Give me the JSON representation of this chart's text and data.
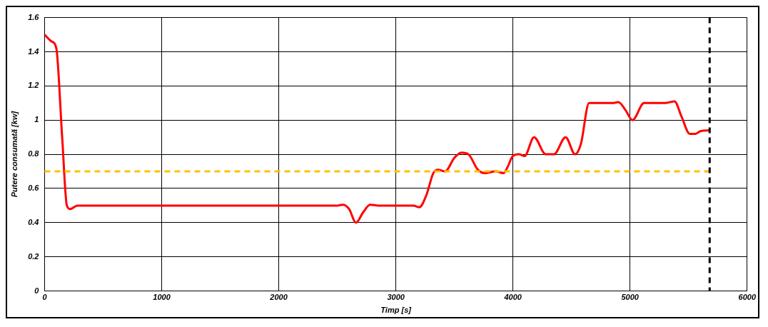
{
  "chart_data": {
    "type": "line",
    "xlabel": "Timp [s]",
    "ylabel": "Putere consumată [kw]",
    "x": [
      0,
      60,
      100,
      150,
      190,
      220,
      280,
      2500,
      2550,
      2600,
      2660,
      2720,
      2780,
      2850,
      3150,
      3200,
      3260,
      3320,
      3360,
      3420,
      3500,
      3560,
      3620,
      3700,
      3760,
      3850,
      3920,
      3950,
      4000,
      4050,
      4100,
      4180,
      4280,
      4350,
      4450,
      4530,
      4580,
      4650,
      4700,
      4850,
      4900,
      4960,
      5020,
      5120,
      5200,
      5300,
      5380,
      5440,
      5510,
      5560,
      5600,
      5680
    ],
    "series": [
      {
        "color": "#ff0000",
        "values": [
          1.5,
          1.46,
          1.42,
          0.9,
          0.5,
          0.48,
          0.5,
          0.5,
          0.505,
          0.48,
          0.4,
          0.46,
          0.505,
          0.5,
          0.5,
          0.49,
          0.56,
          0.69,
          0.71,
          0.7,
          0.78,
          0.81,
          0.8,
          0.71,
          0.69,
          0.7,
          0.69,
          0.72,
          0.79,
          0.8,
          0.79,
          0.9,
          0.8,
          0.8,
          0.9,
          0.8,
          0.86,
          1.1,
          1.1,
          1.1,
          1.105,
          1.06,
          1.0,
          1.1,
          1.1,
          1.1,
          1.11,
          1.02,
          0.92,
          0.92,
          0.935,
          0.94
        ]
      }
    ],
    "xlim": [
      0,
      6000
    ],
    "xticks": [
      0,
      1000,
      2000,
      3000,
      4000,
      5000,
      6000
    ],
    "ylim": [
      0,
      1.6
    ],
    "yticks": [
      0,
      0.2,
      0.4,
      0.6,
      0.8,
      1,
      1.2,
      1.4,
      1.6
    ],
    "grid": true,
    "legend": false,
    "marker": "none",
    "line_style": "solid",
    "ref_lines": [
      {
        "axis": "y",
        "value": 0.7,
        "color": "#ffc000",
        "line_style": "dashed"
      },
      {
        "axis": "x",
        "value": 5680,
        "color": "#000000",
        "line_style": "dashed"
      }
    ]
  }
}
